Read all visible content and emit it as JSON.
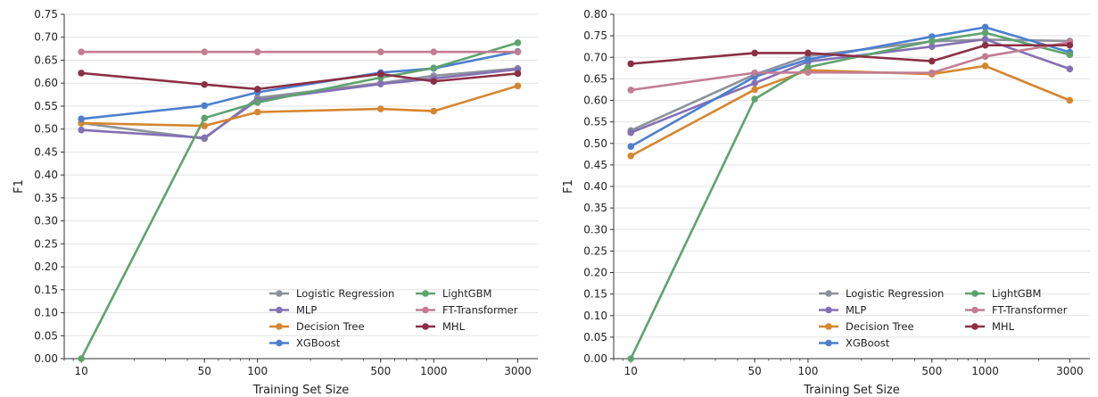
{
  "chart_data": [
    {
      "type": "line",
      "xlabel": "Training Set Size",
      "ylabel": "F1",
      "xscale": "log",
      "x": [
        10,
        50,
        100,
        500,
        1000,
        3000
      ],
      "x_tick_labels": [
        "10",
        "50",
        "100",
        "500",
        "1000",
        "3000"
      ],
      "ylim": [
        0,
        0.75
      ],
      "y_ticks": [
        0.0,
        0.05,
        0.1,
        0.15,
        0.2,
        0.25,
        0.3,
        0.35,
        0.4,
        0.45,
        0.5,
        0.55,
        0.6,
        0.65,
        0.7,
        0.75
      ],
      "y_tick_labels": [
        "0.00",
        "0.05",
        "0.10",
        "0.15",
        "0.20",
        "0.25",
        "0.30",
        "0.35",
        "0.40",
        "0.45",
        "0.50",
        "0.55",
        "0.60",
        "0.65",
        "0.70",
        "0.75"
      ],
      "grid": "horizontal",
      "legend_position": "bottom-right",
      "series": [
        {
          "name": "Logistic Regression",
          "color": "#8c929b",
          "values": [
            0.513,
            0.479,
            0.568,
            0.6,
            0.616,
            0.632
          ]
        },
        {
          "name": "MLP",
          "color": "#8470b4",
          "values": [
            0.498,
            0.481,
            0.563,
            0.598,
            0.61,
            0.63
          ]
        },
        {
          "name": "Decision Tree",
          "color": "#d6862f",
          "values": [
            0.513,
            0.507,
            0.537,
            0.544,
            0.539,
            0.594
          ]
        },
        {
          "name": "XGBoost",
          "color": "#4c7fcf",
          "values": [
            0.522,
            0.551,
            0.58,
            0.623,
            0.632,
            0.669
          ]
        },
        {
          "name": "LightGBM",
          "color": "#5ea36e",
          "values": [
            0.0,
            0.524,
            0.558,
            0.612,
            0.633,
            0.688
          ]
        },
        {
          "name": "FT-Transformer",
          "color": "#c27d92",
          "values": [
            0.668,
            0.668,
            0.668,
            0.668,
            0.668,
            0.668
          ]
        },
        {
          "name": "MHL",
          "color": "#8b2f45",
          "values": [
            0.622,
            0.597,
            0.587,
            0.62,
            0.604,
            0.621
          ]
        }
      ]
    },
    {
      "type": "line",
      "xlabel": "Training Set Size",
      "ylabel": "F1",
      "xscale": "log",
      "x": [
        10,
        50,
        100,
        500,
        1000,
        3000
      ],
      "x_tick_labels": [
        "10",
        "50",
        "100",
        "500",
        "1000",
        "3000"
      ],
      "ylim": [
        0,
        0.8
      ],
      "y_ticks": [
        0.0,
        0.05,
        0.1,
        0.15,
        0.2,
        0.25,
        0.3,
        0.35,
        0.4,
        0.45,
        0.5,
        0.55,
        0.6,
        0.65,
        0.7,
        0.75,
        0.8
      ],
      "y_tick_labels": [
        "0.00",
        "0.05",
        "0.10",
        "0.15",
        "0.20",
        "0.25",
        "0.30",
        "0.35",
        "0.40",
        "0.45",
        "0.50",
        "0.55",
        "0.60",
        "0.65",
        "0.70",
        "0.75",
        "0.80"
      ],
      "grid": "horizontal",
      "legend_position": "bottom-right",
      "series": [
        {
          "name": "Logistic Regression",
          "color": "#8c929b",
          "values": [
            0.53,
            0.66,
            0.703,
            0.737,
            0.741,
            0.738
          ]
        },
        {
          "name": "MLP",
          "color": "#8470b4",
          "values": [
            0.525,
            0.64,
            0.69,
            0.725,
            0.742,
            0.673
          ]
        },
        {
          "name": "Decision Tree",
          "color": "#d6862f",
          "values": [
            0.471,
            0.625,
            0.67,
            0.661,
            0.68,
            0.6
          ]
        },
        {
          "name": "XGBoost",
          "color": "#4c7fcf",
          "values": [
            0.493,
            0.655,
            0.695,
            0.748,
            0.77,
            0.712
          ]
        },
        {
          "name": "LightGBM",
          "color": "#5ea36e",
          "values": [
            0.0,
            0.603,
            0.677,
            0.738,
            0.757,
            0.706
          ]
        },
        {
          "name": "FT-Transformer",
          "color": "#c27d92",
          "values": [
            0.624,
            0.664,
            0.665,
            0.664,
            0.702,
            0.735
          ]
        },
        {
          "name": "MHL",
          "color": "#8b2f45",
          "values": [
            0.685,
            0.71,
            0.71,
            0.691,
            0.728,
            0.728
          ]
        }
      ]
    }
  ]
}
